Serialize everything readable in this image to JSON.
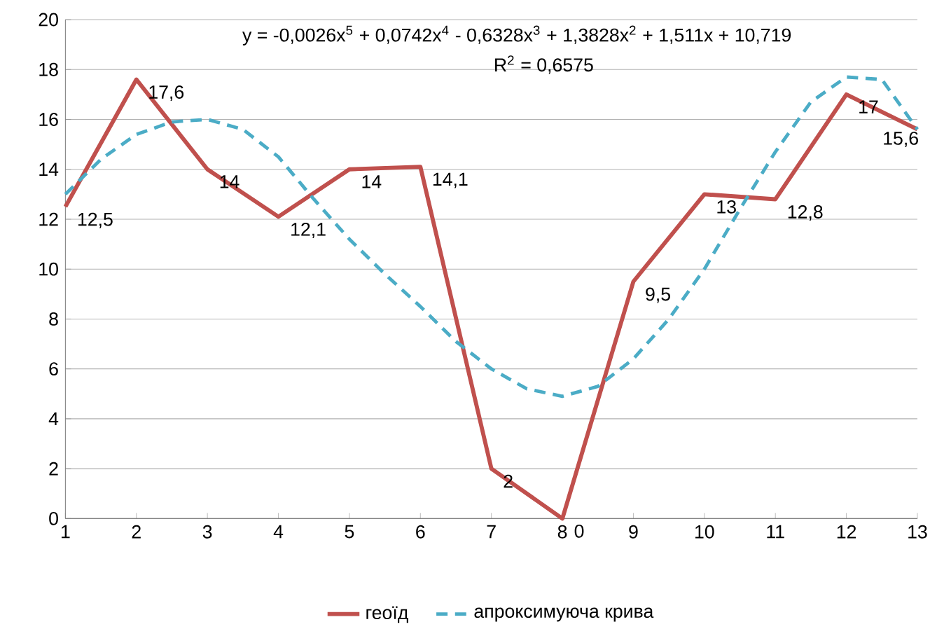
{
  "chart_data": {
    "type": "line",
    "x": [
      1,
      2,
      3,
      4,
      5,
      6,
      7,
      8,
      9,
      10,
      11,
      12,
      13
    ],
    "series": [
      {
        "name": "геоїд",
        "color": "#c0504d",
        "line_style": "solid",
        "values": [
          12.5,
          17.6,
          14,
          12.1,
          14,
          14.1,
          2,
          0,
          9.5,
          13,
          12.8,
          17,
          15.6
        ],
        "value_labels": [
          "12,5",
          "17,6",
          "14",
          "12,1",
          "14",
          "14,1",
          "2",
          "0",
          "9,5",
          "13",
          "12,8",
          "17",
          "15,6"
        ]
      },
      {
        "name": "апроксимуюча крива",
        "color": "#4bacc6",
        "line_style": "dashed",
        "x": [
          1,
          1.5,
          2,
          2.5,
          3,
          3.5,
          4,
          4.5,
          5,
          5.5,
          6,
          6.5,
          7,
          7.5,
          8,
          8.5,
          9,
          9.5,
          10,
          10.5,
          11,
          11.5,
          12,
          12.5,
          13
        ],
        "values": [
          13.0,
          14.4,
          15.4,
          15.9,
          16.0,
          15.6,
          14.5,
          12.8,
          11.2,
          9.8,
          8.5,
          7.1,
          6.0,
          5.2,
          4.9,
          5.3,
          6.4,
          8.0,
          10.0,
          12.4,
          14.7,
          16.7,
          17.7,
          17.6,
          15.6
        ]
      }
    ],
    "annotations": [
      "y = -0,0026x$^{5}$ + 0,0742x$^{4}$ - 0,6328x$^{3}$ + 1,3828x$^{2}$ + 1,511x + 10,719",
      "R$^{2}$ = 0,6575"
    ],
    "xlim": [
      1,
      13
    ],
    "xticks": [
      1,
      2,
      3,
      4,
      5,
      6,
      7,
      8,
      9,
      10,
      11,
      12,
      13
    ],
    "ylim": [
      0,
      20
    ],
    "yticks": [
      0,
      2,
      4,
      6,
      8,
      10,
      12,
      14,
      16,
      18,
      20
    ],
    "grid": "y",
    "legend": "bottom",
    "marker": "none"
  }
}
